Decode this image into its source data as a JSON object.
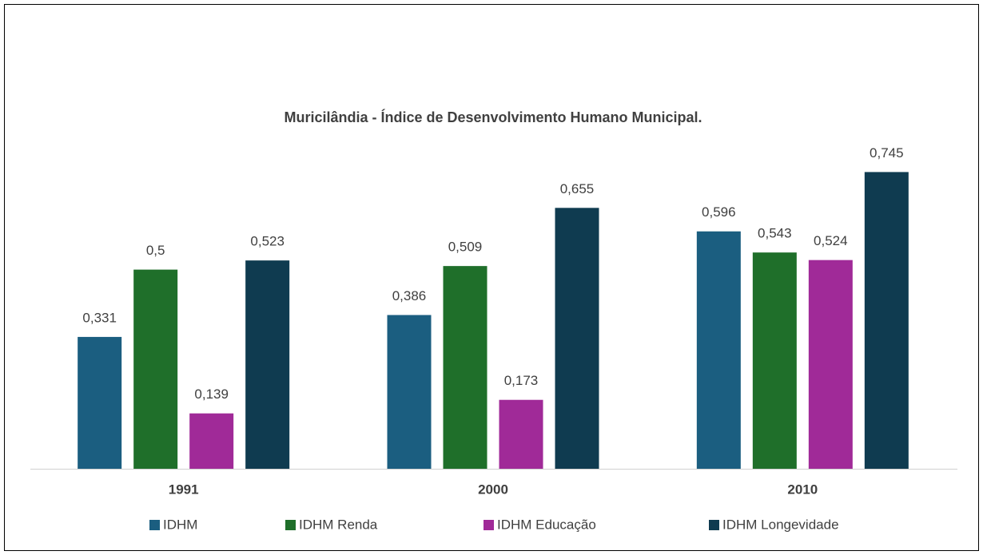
{
  "chart_data": {
    "type": "bar",
    "title": "Muricilândia - Índice de Desenvolvimento Humano Municipal.",
    "categories": [
      "1991",
      "2000",
      "2010"
    ],
    "series": [
      {
        "name": "IDHM",
        "color": "#1b5e80",
        "values": [
          0.331,
          0.386,
          0.596
        ],
        "value_labels": [
          "0,331",
          "0,386",
          "0,596"
        ]
      },
      {
        "name": "IDHM Renda",
        "color": "#1f6f2a",
        "values": [
          0.5,
          0.509,
          0.543
        ],
        "value_labels": [
          "0,5",
          "0,509",
          "0,543"
        ]
      },
      {
        "name": "IDHM Educação",
        "color": "#a02a98",
        "values": [
          0.139,
          0.173,
          0.524
        ],
        "value_labels": [
          "0,139",
          "0,173",
          "0,524"
        ]
      },
      {
        "name": "IDHM Longevidade",
        "color": "#0f3b50",
        "values": [
          0.523,
          0.655,
          0.745
        ],
        "value_labels": [
          "0,523",
          "0,655",
          "0,745"
        ]
      }
    ],
    "ylim": [
      0,
      0.8
    ],
    "legend": "bottom"
  }
}
